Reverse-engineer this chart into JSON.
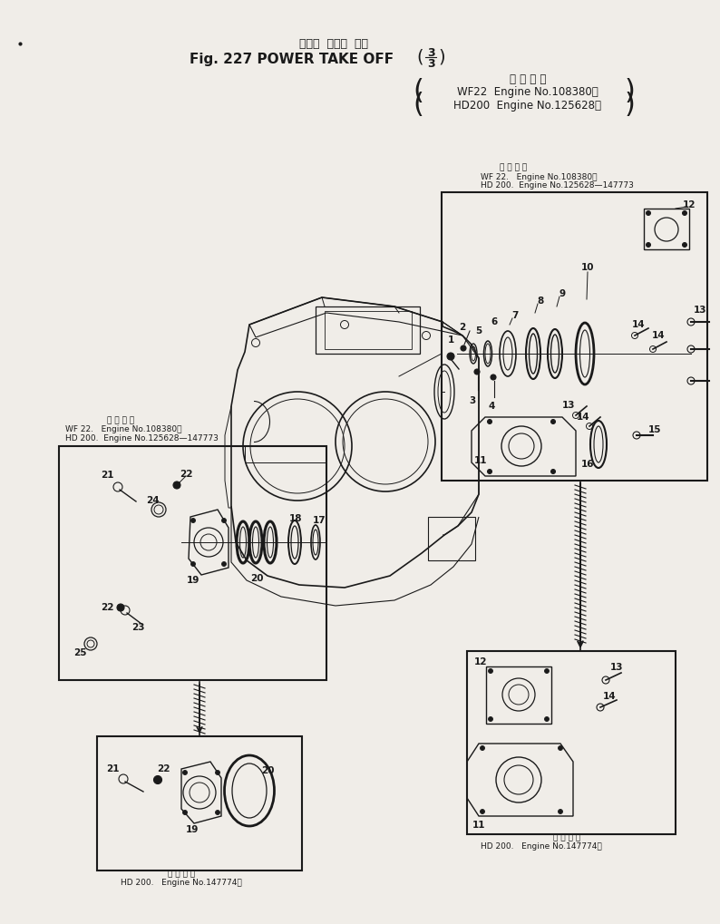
{
  "bg_color": "#f0ede8",
  "line_color": "#1a1a1a",
  "title_jp": "パワー  テーク  オフ",
  "title_en": "Fig. 227 POWER TAKE OFF",
  "title_frac_num": "3",
  "title_frac_den": "3",
  "applic_header": "適 用 号 機",
  "applic1": "WF22  Engine No.108380～",
  "applic2": "HD200  Engine No.125628～",
  "ur_applic_header": "適 用 号 機",
  "ur_applic1": "WF 22.   Engine No.108380～",
  "ur_applic2": "HD 200.  Engine No.125628—147773",
  "ll_applic1": "WF 22.   Engine No.108380～",
  "ll_applic2": "HD 200.  Engine No.125628—147773",
  "bl_applic_jp": "適 用 号 機",
  "bl_applic": "HD 200.   Engine No.147774～",
  "br_applic_jp": "適 用 号 機",
  "br_applic": "HD 200.   Engine No.147774～"
}
